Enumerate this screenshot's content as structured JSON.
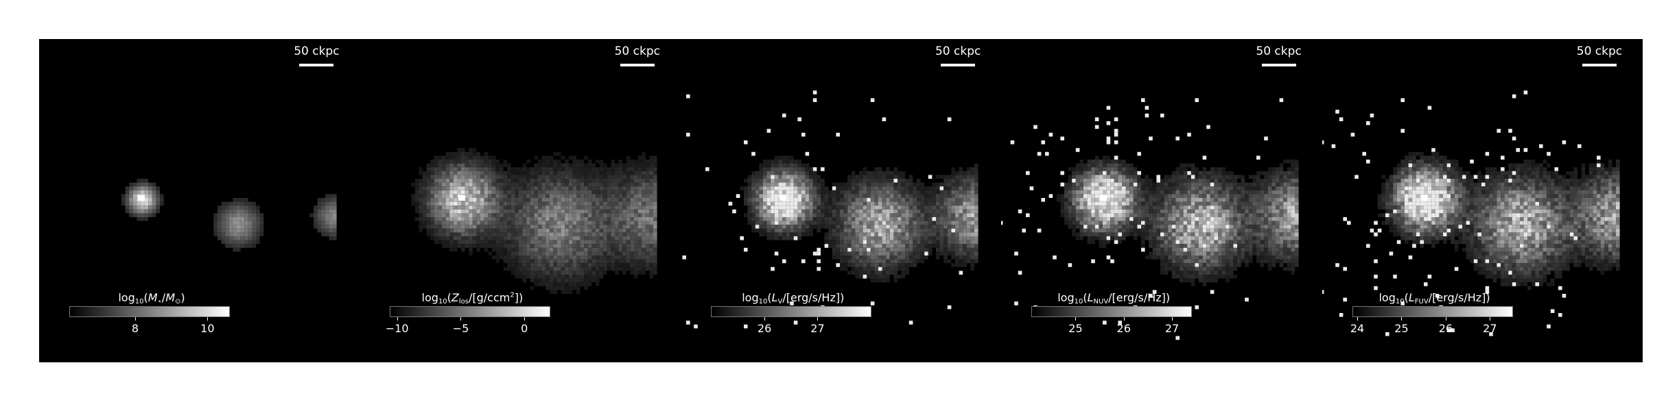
{
  "panels": [
    {
      "scale_label": "50 ckpc",
      "colorbar": {
        "label_prefix": "log",
        "label_sub": "10",
        "label_body": "(M⋆/M⊙)",
        "ticks": [
          "8",
          "10"
        ],
        "range": [
          6.2,
          10.6
        ]
      }
    },
    {
      "scale_label": "50 ckpc",
      "colorbar": {
        "label_prefix": "log",
        "label_sub": "10",
        "label_body": "(Z los/[g/ccm2])",
        "ticks": [
          "−10",
          "−5",
          "0"
        ],
        "range": [
          -10.5,
          2
        ]
      }
    },
    {
      "scale_label": "50 ckpc",
      "colorbar": {
        "label_prefix": "log",
        "label_sub": "10",
        "label_body": "(L V/[erg/s/Hz])",
        "ticks": [
          "26",
          "27"
        ],
        "range": [
          25,
          28
        ]
      }
    },
    {
      "scale_label": "50 ckpc",
      "colorbar": {
        "label_prefix": "log",
        "label_sub": "10",
        "label_body": "(L NUV/[erg/s/Hz])",
        "ticks": [
          "25",
          "26",
          "27"
        ],
        "range": [
          24.1,
          27.4
        ]
      }
    },
    {
      "scale_label": "50 ckpc",
      "colorbar": {
        "label_prefix": "log",
        "label_sub": "10",
        "label_body": "(L FUV/[erg/s/Hz])",
        "ticks": [
          "24",
          "25",
          "26",
          "27"
        ],
        "range": [
          23.9,
          27.5
        ]
      }
    }
  ]
}
